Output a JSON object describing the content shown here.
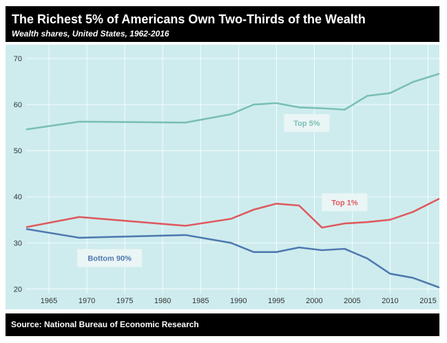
{
  "header": {
    "title": "The Richest 5% of Americans Own Two-Thirds of the Wealth",
    "subtitle": "Wealth shares, United States, 1962-2016"
  },
  "footer": {
    "source": "Source: National Bureau of Economic Research"
  },
  "colors": {
    "background": "#ceecee",
    "top5": "#7abfb4",
    "top1": "#de5a5f",
    "bottom90": "#4f79b0"
  },
  "chart_data": {
    "type": "line",
    "title": "The Richest 5% of Americans Own Two-Thirds of the Wealth",
    "subtitle": "Wealth shares, United States, 1962-2016",
    "xlabel": "",
    "ylabel": "",
    "xlim": [
      1962,
      2016.5
    ],
    "ylim": [
      19,
      73
    ],
    "x_ticks": [
      1965,
      1970,
      1975,
      1980,
      1985,
      1990,
      1995,
      2000,
      2005,
      2010,
      2015
    ],
    "y_ticks": [
      20,
      30,
      40,
      50,
      60,
      70
    ],
    "grid": true,
    "legend": "inline labels",
    "series": [
      {
        "name": "Top 5%",
        "color": "#7abfb4",
        "label_box": {
          "year": 1999,
          "value": 56
        },
        "x": [
          1962,
          1969,
          1983,
          1989,
          1992,
          1995,
          1998,
          2001,
          2004,
          2007,
          2010,
          2013,
          2016.5
        ],
        "y": [
          54.6,
          56.3,
          56.1,
          57.9,
          60.0,
          60.3,
          59.4,
          59.2,
          58.9,
          61.9,
          62.5,
          64.9,
          66.7
        ]
      },
      {
        "name": "Top 1%",
        "color": "#de5a5f",
        "label_box": {
          "year": 2004,
          "value": 38.8
        },
        "x": [
          1962,
          1969,
          1983,
          1989,
          1992,
          1995,
          1998,
          2001,
          2004,
          2007,
          2010,
          2013,
          2016.5
        ],
        "y": [
          33.4,
          35.6,
          33.7,
          35.2,
          37.2,
          38.5,
          38.1,
          33.3,
          34.2,
          34.5,
          35.0,
          36.7,
          39.6
        ]
      },
      {
        "name": "Bottom 90%",
        "color": "#4f79b0",
        "label_box": {
          "year": 1973,
          "value": 26.7
        },
        "x": [
          1962,
          1969,
          1983,
          1989,
          1992,
          1995,
          1998,
          2001,
          2004,
          2007,
          2010,
          2013,
          2016.5
        ],
        "y": [
          33.0,
          31.1,
          31.7,
          30.0,
          28.0,
          28.0,
          29.0,
          28.4,
          28.7,
          26.6,
          23.3,
          22.4,
          20.3
        ]
      }
    ]
  }
}
